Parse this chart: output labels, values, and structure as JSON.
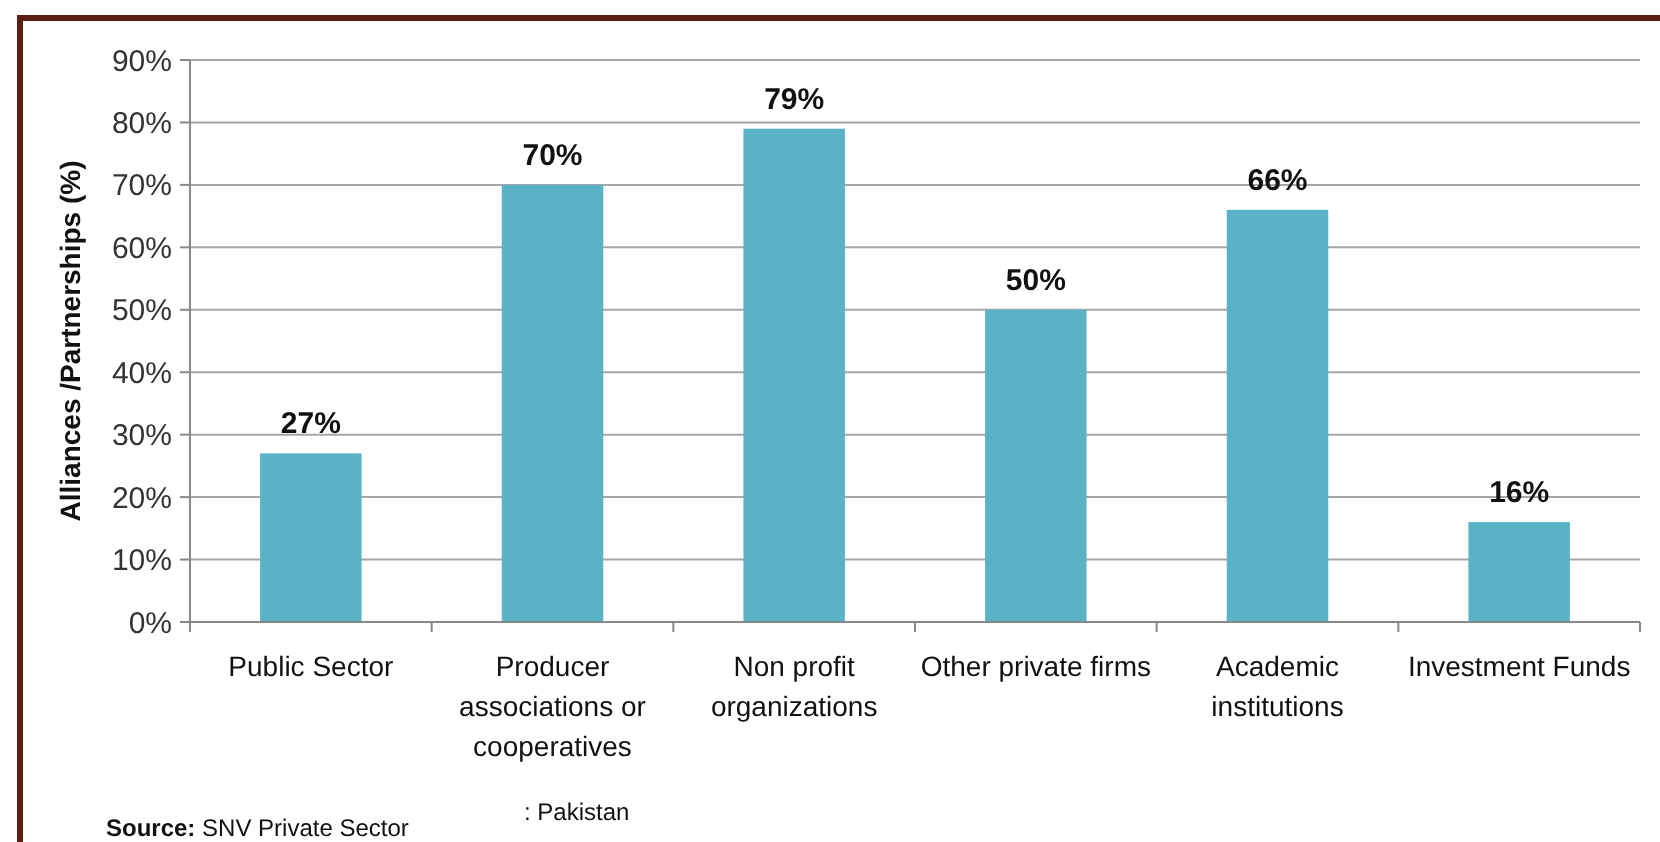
{
  "chart_data": {
    "type": "bar",
    "ylabel": "Alliances /Partnerships (%)",
    "categories": [
      "Public Sector",
      "Producer associations or cooperatives",
      "Non profit organizations",
      "Other private firms",
      "Academic institutions",
      "Investment Funds"
    ],
    "values": [
      27,
      70,
      79,
      50,
      66,
      16
    ],
    "value_labels": [
      "27%",
      "70%",
      "79%",
      "50%",
      "66%",
      "16%"
    ],
    "color": "#5ab2c6",
    "ylim": [
      0,
      90
    ],
    "yticks": [
      {
        "value": 0,
        "label": "0%"
      },
      {
        "value": 10,
        "label": "10%"
      },
      {
        "value": 20,
        "label": "20%"
      },
      {
        "value": 30,
        "label": "30%"
      },
      {
        "value": 40,
        "label": "40%"
      },
      {
        "value": 50,
        "label": "50%"
      },
      {
        "value": 60,
        "label": "60%"
      },
      {
        "value": 70,
        "label": "70%"
      },
      {
        "value": 80,
        "label": "80%"
      },
      {
        "value": 90,
        "label": "90%"
      }
    ],
    "grid": "y",
    "annotations": [
      "Source: SNV Private Sector",
      ": Pakistan"
    ]
  }
}
